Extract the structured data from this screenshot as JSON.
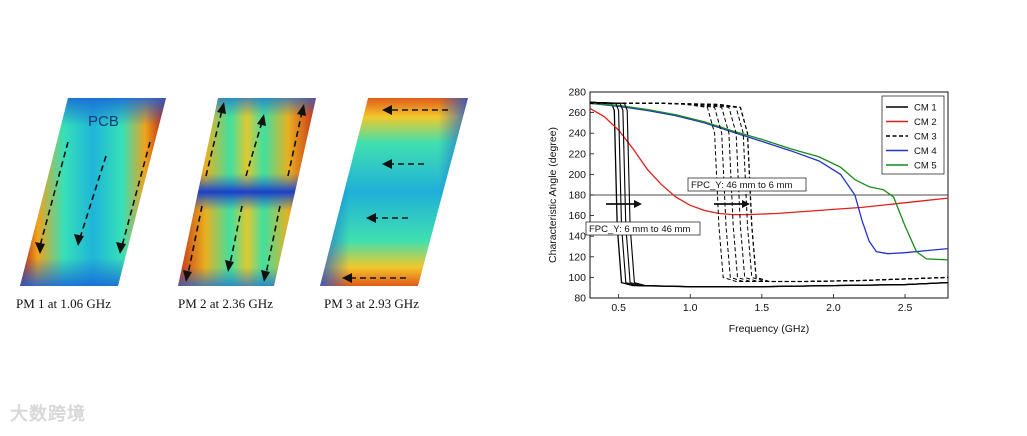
{
  "modes": [
    {
      "label": "PCB",
      "caption": "PM 1 at 1.06 GHz"
    },
    {
      "label": "",
      "caption": "PM 2 at 2.36 GHz"
    },
    {
      "label": "",
      "caption": "PM 3 at 2.93 GHz"
    }
  ],
  "watermark": "大数跨境",
  "colors": {
    "CM 1": "#000000",
    "CM 2": "#e0201b",
    "CM 3": "#000000",
    "CM 4": "#2233cc",
    "CM 5": "#1a8a1a"
  },
  "chart_data": {
    "type": "line",
    "xlabel": "Frequency (GHz)",
    "ylabel": "Characteristic Angle (degree)",
    "xlim": [
      0.3,
      2.8
    ],
    "ylim": [
      80,
      280
    ],
    "xticks": [
      "0.5",
      "1.0",
      "1.5",
      "2.0",
      "2.5"
    ],
    "yticks": [
      "80",
      "100",
      "120",
      "140",
      "160",
      "180",
      "200",
      "220",
      "240",
      "260",
      "280"
    ],
    "reference_line_y": 180,
    "legend_position": "top-right",
    "annotations": [
      "FPC_Y: 46 mm to 6 mm",
      "FPC_Y: 6 mm to 46 mm"
    ],
    "series": [
      {
        "name": "CM 1",
        "style": "solid",
        "color": "#000000",
        "x": [
          0.3,
          0.45,
          0.47,
          0.49,
          0.52,
          0.6,
          1.0,
          1.5,
          2.0,
          2.5,
          2.8
        ],
        "y": [
          270,
          269,
          262,
          150,
          95,
          92,
          91,
          91,
          92,
          93,
          95
        ]
      },
      {
        "name": "CM 2",
        "style": "solid",
        "color": "#e0201b",
        "x": [
          0.3,
          0.4,
          0.5,
          0.6,
          0.7,
          0.8,
          0.9,
          1.0,
          1.1,
          1.2,
          1.3,
          1.4,
          1.6,
          1.8,
          2.0,
          2.2,
          2.4,
          2.6,
          2.8
        ],
        "y": [
          264,
          256,
          243,
          225,
          205,
          190,
          178,
          170,
          165,
          162,
          161,
          161,
          162,
          164,
          166,
          168,
          171,
          174,
          177
        ]
      },
      {
        "name": "CM 3",
        "style": "dashed",
        "color": "#000000",
        "x": [
          0.3,
          0.8,
          1.2,
          1.35,
          1.4,
          1.43,
          1.46,
          1.55,
          1.8,
          2.2,
          2.8
        ],
        "y": [
          269,
          269,
          268,
          265,
          240,
          150,
          100,
          96,
          96,
          97,
          100
        ]
      },
      {
        "name": "CM 4",
        "style": "solid",
        "color": "#2233cc",
        "x": [
          0.3,
          0.5,
          0.7,
          0.9,
          1.1,
          1.3,
          1.5,
          1.7,
          1.9,
          2.05,
          2.15,
          2.2,
          2.25,
          2.3,
          2.38,
          2.5,
          2.65,
          2.8
        ],
        "y": [
          269,
          266,
          262,
          257,
          250,
          241,
          232,
          223,
          213,
          200,
          180,
          155,
          135,
          125,
          123,
          124,
          126,
          128
        ]
      },
      {
        "name": "CM 5",
        "style": "solid",
        "color": "#1a8a1a",
        "x": [
          0.3,
          0.5,
          0.7,
          0.9,
          1.1,
          1.3,
          1.5,
          1.7,
          1.9,
          2.05,
          2.15,
          2.25,
          2.35,
          2.42,
          2.5,
          2.58,
          2.65,
          2.8
        ],
        "y": [
          269,
          267,
          263,
          258,
          251,
          242,
          234,
          225,
          217,
          207,
          195,
          188,
          185,
          178,
          150,
          125,
          118,
          117
        ]
      }
    ]
  }
}
